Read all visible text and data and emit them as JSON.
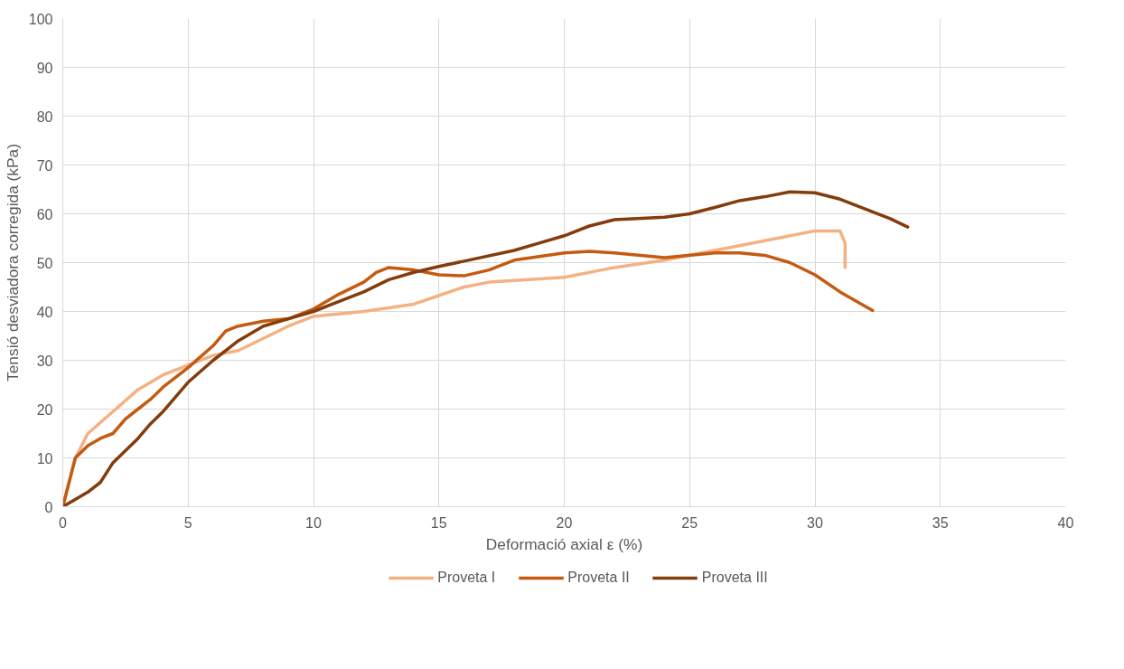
{
  "chart_data": {
    "type": "line",
    "xlabel": "Deformació axial ε (%)",
    "ylabel": "Tensió desviadora corregida (kPa)",
    "xlim": [
      0,
      40
    ],
    "xticks": [
      0,
      5,
      10,
      15,
      20,
      25,
      30,
      35,
      40
    ],
    "ylim": [
      0,
      100
    ],
    "yticks": [
      0,
      10,
      20,
      30,
      40,
      50,
      60,
      70,
      80,
      90,
      100
    ],
    "grid": true,
    "legend": "bottom",
    "marker": "none",
    "line_style": "solid",
    "series": [
      {
        "name": "Proveta I",
        "color": "#f4b183",
        "x": [
          0,
          0.5,
          1,
          2,
          3,
          4,
          5,
          6,
          7,
          8,
          9,
          10,
          12,
          14,
          16,
          17,
          20,
          22,
          24,
          26,
          28,
          30,
          31,
          31.2,
          31.2
        ],
        "values": [
          0,
          10,
          15,
          19.5,
          24,
          27,
          29,
          31,
          32,
          34.5,
          37,
          39,
          40,
          41.5,
          45,
          46,
          47,
          49,
          50.5,
          52.5,
          54.5,
          56.5,
          56.5,
          54,
          49
        ]
      },
      {
        "name": "Proveta II",
        "color": "#c55a11",
        "x": [
          0,
          0.5,
          1,
          1.5,
          2,
          2.5,
          3,
          3.5,
          4,
          5,
          6,
          6.5,
          7,
          8,
          9,
          10,
          11,
          12,
          12.5,
          13,
          14,
          15,
          16,
          17,
          18,
          20,
          21,
          22,
          24,
          26,
          27,
          28,
          29,
          30,
          31,
          32.3
        ],
        "values": [
          0,
          10,
          12.5,
          14,
          15,
          18,
          20,
          22,
          24.5,
          28.5,
          33,
          36,
          37,
          38,
          38.5,
          40.5,
          43.5,
          46,
          48,
          49,
          48.5,
          47.5,
          47.3,
          48.5,
          50.5,
          52,
          52.3,
          52,
          51,
          52,
          52,
          51.5,
          50,
          47.5,
          44,
          40.2
        ]
      },
      {
        "name": "Proveta III",
        "color": "#843c0c",
        "x": [
          0,
          1,
          1.5,
          2,
          3,
          3.5,
          4,
          5,
          6,
          7,
          8,
          9,
          10,
          11,
          12,
          13,
          14,
          15,
          16,
          18,
          19,
          20,
          21,
          22,
          24,
          25,
          26,
          27,
          28,
          29,
          30,
          31,
          32,
          33,
          33.7
        ],
        "values": [
          0,
          3,
          5,
          9,
          14,
          17,
          19.5,
          25.5,
          30,
          34,
          37,
          38.5,
          40,
          42,
          44,
          46.5,
          48,
          49.2,
          50.3,
          52.5,
          54,
          55.5,
          57.5,
          58.8,
          59.3,
          60,
          61.3,
          62.7,
          63.5,
          64.5,
          64.3,
          63,
          61,
          59,
          57.3
        ]
      }
    ]
  }
}
